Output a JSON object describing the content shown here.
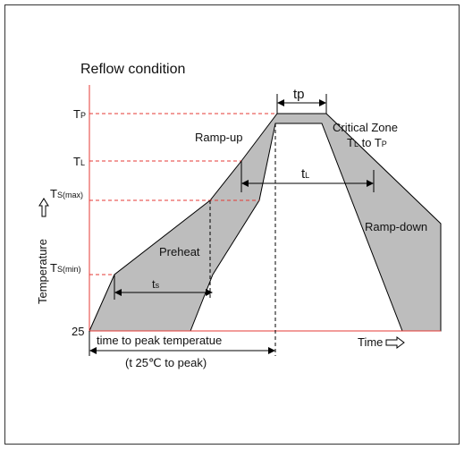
{
  "title": "Reflow condition",
  "y_axis_label": "Temperature",
  "x_axis_label": "Time",
  "levels": [
    {
      "main": "T",
      "sub": "P"
    },
    {
      "main": "T",
      "sub": "L"
    },
    {
      "main": "T",
      "sub": "S(max)"
    },
    {
      "main": "T",
      "sub": "S(min)"
    },
    {
      "main": "25"
    }
  ],
  "annotations": {
    "tp": "tp",
    "ramp_up": "Ramp-up",
    "critical_zone": "Critical Zone",
    "critical_range": {
      "from_main": "T",
      "from_sub": "L",
      "to": " to ",
      "to_main": "T",
      "to_sub": "P"
    },
    "tl": {
      "main": "t",
      "sub": "L"
    },
    "ramp_down": "Ramp-down",
    "preheat": "Preheat",
    "ts": {
      "main": "t",
      "sub": "s"
    },
    "time_to_peak": "time to peak temperatue",
    "time_to_peak_note": "(t 25℃ to peak)"
  }
}
